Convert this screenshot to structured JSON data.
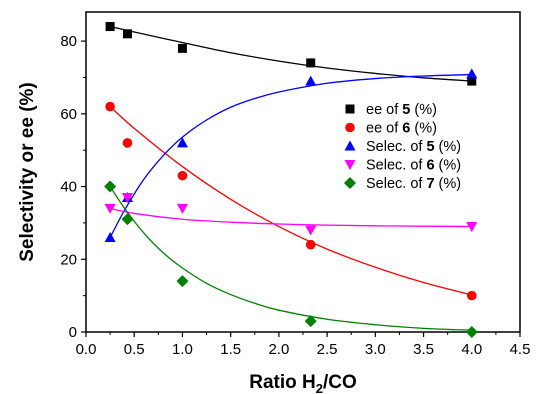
{
  "chart_data": {
    "type": "scatter",
    "xlabel": {
      "main": "Ratio H",
      "sub": "2",
      "tail": "/CO"
    },
    "ylabel": "Selectivity or ee (%)",
    "xlim": [
      0.0,
      4.5
    ],
    "ylim": [
      0,
      88
    ],
    "x_ticks": [
      "0.0",
      "0.5",
      "1.0",
      "1.5",
      "2.0",
      "2.5",
      "3.0",
      "3.5",
      "4.0",
      "4.5"
    ],
    "y_ticks": [
      "0",
      "20",
      "40",
      "60",
      "80"
    ],
    "grid": false,
    "legend_position": "center-right",
    "series": [
      {
        "name": {
          "pre": "ee of ",
          "bold": "5",
          "post": " (%)"
        },
        "marker": "square",
        "color": "#000000",
        "x": [
          0.25,
          0.43,
          1.0,
          2.33,
          4.0
        ],
        "y": [
          84,
          82,
          78,
          74,
          69
        ],
        "fit": [
          [
            0.25,
            84.0
          ],
          [
            0.5,
            82.5
          ],
          [
            1.0,
            79.6
          ],
          [
            1.5,
            76.8
          ],
          [
            2.0,
            74.5
          ],
          [
            2.5,
            72.6
          ],
          [
            3.0,
            71.1
          ],
          [
            3.5,
            69.9
          ],
          [
            4.0,
            69.0
          ]
        ]
      },
      {
        "name": {
          "pre": "ee of ",
          "bold": "6",
          "post": " (%)"
        },
        "marker": "circle",
        "color": "#ff0000",
        "x": [
          0.25,
          0.43,
          1.0,
          2.33,
          4.0
        ],
        "y": [
          62,
          52,
          43,
          24,
          10
        ],
        "fit": [
          [
            0.25,
            62.0
          ],
          [
            0.5,
            56.0
          ],
          [
            1.0,
            45.5
          ],
          [
            1.5,
            36.5
          ],
          [
            2.0,
            29.0
          ],
          [
            2.5,
            22.8
          ],
          [
            3.0,
            17.8
          ],
          [
            3.5,
            13.6
          ],
          [
            4.0,
            10.2
          ]
        ]
      },
      {
        "name": {
          "pre": "Selec. of ",
          "bold": "5",
          "post": " (%)"
        },
        "marker": "triangle-up",
        "color": "#0000ff",
        "x": [
          0.25,
          0.43,
          1.0,
          2.33,
          4.0
        ],
        "y": [
          26,
          37,
          52,
          69,
          71
        ],
        "fit": [
          [
            0.25,
            26.0
          ],
          [
            0.4,
            33.5
          ],
          [
            0.6,
            42.0
          ],
          [
            0.8,
            48.5
          ],
          [
            1.0,
            53.6
          ],
          [
            1.25,
            58.3
          ],
          [
            1.5,
            61.8
          ],
          [
            1.75,
            64.2
          ],
          [
            2.0,
            66.0
          ],
          [
            2.5,
            68.4
          ],
          [
            3.0,
            69.7
          ],
          [
            3.5,
            70.4
          ],
          [
            4.0,
            70.8
          ]
        ]
      },
      {
        "name": {
          "pre": "Selec. of ",
          "bold": "6",
          "post": " (%)"
        },
        "marker": "triangle-down",
        "color": "#ff00ff",
        "x": [
          0.25,
          0.43,
          1.0,
          2.33,
          4.0
        ],
        "y": [
          34,
          37,
          34,
          28,
          29
        ],
        "fit": [
          [
            0.25,
            34.0
          ],
          [
            0.5,
            32.6
          ],
          [
            1.0,
            31.0
          ],
          [
            1.5,
            30.2
          ],
          [
            2.0,
            29.7
          ],
          [
            2.5,
            29.4
          ],
          [
            3.0,
            29.2
          ],
          [
            3.5,
            29.1
          ],
          [
            4.0,
            29.0
          ]
        ]
      },
      {
        "name": {
          "pre": "Selec. of ",
          "bold": "7",
          "post": " (%)"
        },
        "marker": "diamond",
        "color": "#008000",
        "x": [
          0.25,
          0.43,
          1.0,
          2.33,
          4.0
        ],
        "y": [
          40,
          31,
          14,
          3,
          0
        ],
        "fit": [
          [
            0.25,
            40.0
          ],
          [
            0.4,
            34.0
          ],
          [
            0.6,
            27.2
          ],
          [
            0.8,
            21.8
          ],
          [
            1.0,
            17.6
          ],
          [
            1.25,
            13.4
          ],
          [
            1.5,
            10.3
          ],
          [
            1.75,
            7.9
          ],
          [
            2.0,
            6.0
          ],
          [
            2.5,
            3.5
          ],
          [
            3.0,
            2.0
          ],
          [
            3.5,
            1.0
          ],
          [
            4.0,
            0.5
          ]
        ]
      }
    ]
  }
}
